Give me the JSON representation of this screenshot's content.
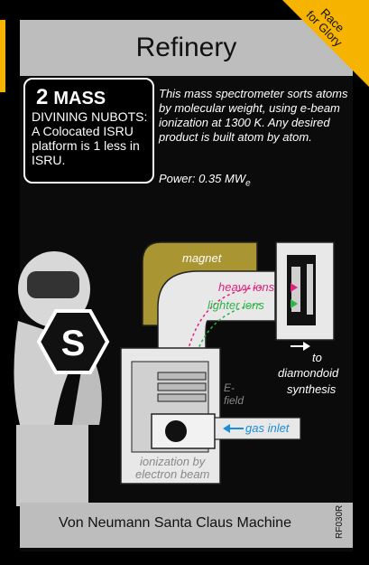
{
  "card": {
    "title": "Refinery",
    "corner_line1": "Race",
    "corner_line2": "for Glory",
    "mass_number": "2",
    "mass_label": "MASS",
    "ability_text": "DIVINING NUBOTS: A Colocated ISRU platform is 1 less in ISRU.",
    "description": "This mass spectrometer sorts atoms by molecular weight, using e-beam ionization at 1300 K. Any desired product is built atom by atom.",
    "power_label": "Power: 0.35 MW",
    "power_sub": "e",
    "footer": "Von Neumann Santa Claus Machine",
    "code": "RF030R",
    "type_letter": "S"
  },
  "diagram": {
    "magnet": "magnet",
    "heavy_ions": "heavy ions",
    "lighter_ions": "lighter ions",
    "to": "to",
    "diamondoid": "diamondoid",
    "synthesis": "synthesis",
    "e_field_1": "E-",
    "e_field_2": "field",
    "gas_inlet": "gas inlet",
    "ionization_1": "ionization by",
    "ionization_2": "electron beam"
  },
  "colors": {
    "accent": "#f6b400",
    "heavy": "#e0207a",
    "lighter": "#2fb24a",
    "gas": "#1a8ed8",
    "magnet": "#a99532"
  }
}
